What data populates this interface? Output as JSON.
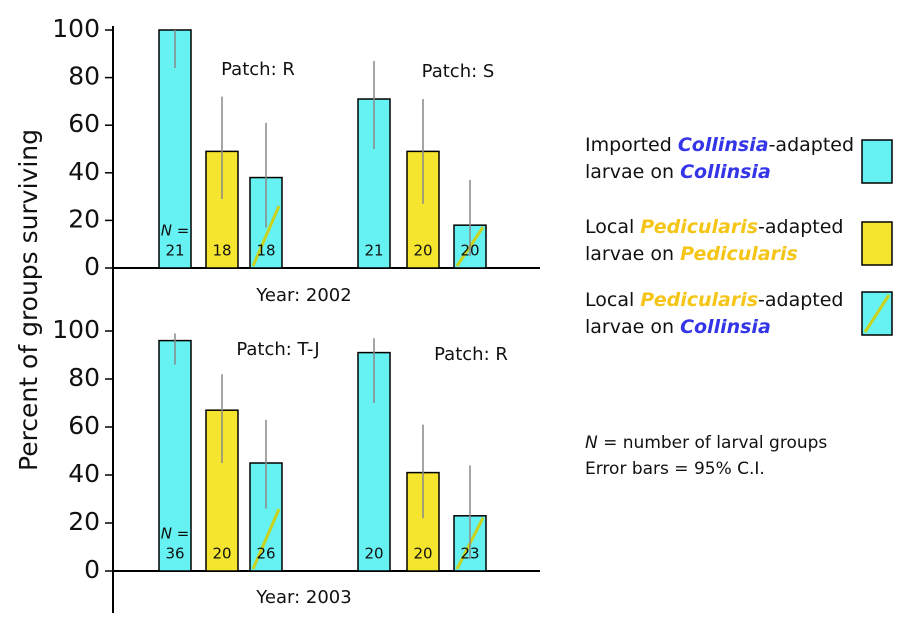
{
  "chart_data": [
    {
      "type": "bar",
      "title": "Year: 2002",
      "ylabel": "Percent of groups surviving",
      "categories": [
        "Patch: R",
        "Patch: S"
      ],
      "n_prefix": "N =",
      "ylim": [
        0,
        100
      ],
      "yticks": [
        0,
        20,
        40,
        60,
        80,
        100
      ],
      "series": [
        {
          "name": [
            [
              {
                "text": "Imported "
              },
              {
                "text": "Collinsia",
                "color": "#3434e8"
              },
              {
                "text": "-adapted"
              }
            ],
            [
              {
                "text": "larvae on "
              },
              {
                "text": "Collinsia",
                "color": "#3434e8"
              }
            ]
          ],
          "color": "#66f2f2",
          "values": [
            100,
            71
          ],
          "ci_low": [
            84,
            50
          ],
          "ci_high": [
            100,
            87
          ],
          "n": [
            21,
            21
          ]
        },
        {
          "name": [
            [
              {
                "text": "Local "
              },
              {
                "text": "Pedicularis",
                "color": "#f5c518"
              },
              {
                "text": "-adapted"
              }
            ],
            [
              {
                "text": "larvae on "
              },
              {
                "text": "Pedicularis",
                "color": "#f5c518"
              }
            ]
          ],
          "color": "#f5e52e",
          "values": [
            49,
            49
          ],
          "ci_low": [
            29,
            27
          ],
          "ci_high": [
            72,
            71
          ],
          "n": [
            18,
            20
          ]
        },
        {
          "name": [
            [
              {
                "text": "Local "
              },
              {
                "text": "Pedicularis",
                "color": "#f5c518"
              },
              {
                "text": "-adapted"
              }
            ],
            [
              {
                "text": "larvae on "
              },
              {
                "text": "Collinsia",
                "color": "#3434e8"
              }
            ]
          ],
          "color": "#66f2f2",
          "pattern": "diagonal",
          "values": [
            38,
            18
          ],
          "ci_low": [
            17,
            5
          ],
          "ci_high": [
            61,
            37
          ],
          "n": [
            18,
            20
          ]
        }
      ]
    },
    {
      "type": "bar",
      "title": "Year: 2003",
      "categories": [
        "Patch: T-J",
        "Patch: R"
      ],
      "n_prefix": "N =",
      "ylim": [
        0,
        100
      ],
      "yticks": [
        0,
        20,
        40,
        60,
        80,
        100
      ],
      "series": [
        {
          "color": "#66f2f2",
          "values": [
            96,
            91
          ],
          "ci_low": [
            86,
            70
          ],
          "ci_high": [
            99,
            97
          ],
          "n": [
            36,
            20
          ]
        },
        {
          "color": "#f5e52e",
          "values": [
            67,
            41
          ],
          "ci_low": [
            45,
            22
          ],
          "ci_high": [
            82,
            61
          ],
          "n": [
            20,
            20
          ]
        },
        {
          "color": "#66f2f2",
          "pattern": "diagonal",
          "values": [
            45,
            23
          ],
          "ci_low": [
            26,
            5
          ],
          "ci_high": [
            63,
            44
          ],
          "n": [
            26,
            23
          ]
        }
      ]
    }
  ],
  "notes": [
    [
      {
        "text": "N",
        "italic": true
      },
      {
        "text": " = number of larval groups"
      }
    ],
    [
      {
        "text": "Error bars = 95% C.I."
      }
    ]
  ]
}
